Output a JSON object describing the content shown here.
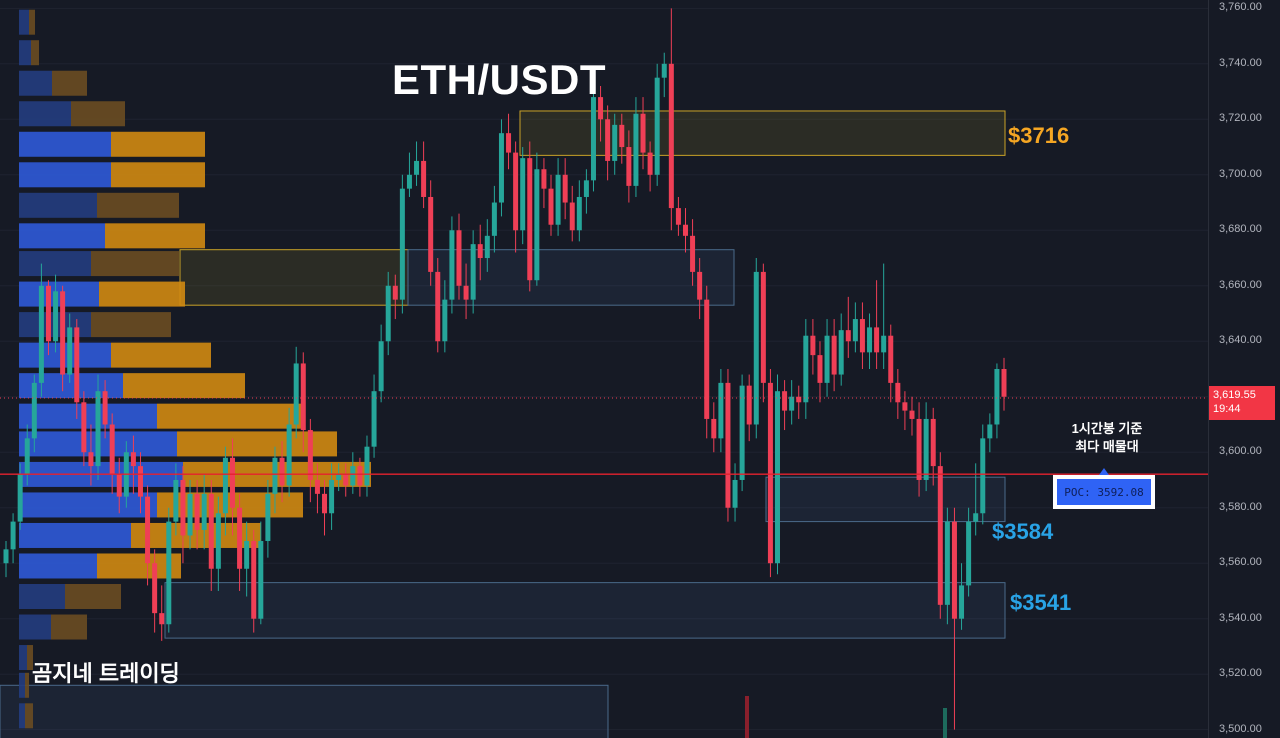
{
  "chart_data": {
    "type": "candlestick",
    "title": "ETH/USDT",
    "timeframe_note": [
      "1시간봉 기준",
      "최다 매물대"
    ],
    "watermark": "곰지네 트레이딩",
    "y_axis": {
      "range": [
        3497,
        3763
      ],
      "ticks": [
        "3,760.00",
        "3,740.00",
        "3,720.00",
        "3,700.00",
        "3,680.00",
        "3,660.00",
        "3,640.00",
        "3,620.00",
        "3,600.00",
        "3,580.00",
        "3,560.00",
        "3,540.00",
        "3,520.00",
        "3,500.00"
      ],
      "tick_values": [
        3760,
        3740,
        3720,
        3700,
        3680,
        3660,
        3640,
        3620,
        3600,
        3580,
        3560,
        3540,
        3520,
        3500
      ]
    },
    "current_price": {
      "label": "3,619.55",
      "countdown": "19:44",
      "value": 3619.55
    },
    "poc": {
      "label": "POC: 3592.08",
      "value": 3592.08
    },
    "levels": [
      {
        "label": "$3716",
        "color": "#f5a623"
      },
      {
        "label": "$3584",
        "color": "#29a3e6"
      },
      {
        "label": "$3541",
        "color": "#29a3e6"
      }
    ],
    "zones": [
      {
        "name": "resistance-3716",
        "y_top": 3723,
        "y_bottom": 3707,
        "x_start": 520,
        "x_end": 1005,
        "style": "yellow"
      },
      {
        "name": "mid-zone-3660",
        "y_top": 3673,
        "y_bottom": 3653,
        "x_start": 180,
        "x_end": 408,
        "style": "yellow"
      },
      {
        "name": "mid-zone-3660-blue",
        "y_top": 3673,
        "y_bottom": 3653,
        "x_start": 408,
        "x_end": 734,
        "style": "blue"
      },
      {
        "name": "support-3584",
        "y_top": 3591,
        "y_bottom": 3575,
        "x_start": 766,
        "x_end": 1005,
        "style": "blue"
      },
      {
        "name": "support-3541",
        "y_top": 3553,
        "y_bottom": 3533,
        "x_start": 165,
        "x_end": 1005,
        "style": "blue"
      },
      {
        "name": "lower-zone",
        "y_top": 3516,
        "y_bottom": 3490,
        "x_start": 0,
        "x_end": 608,
        "style": "blue"
      }
    ],
    "volume_profile": [
      {
        "price": 3755,
        "buy": 10,
        "sell": 6
      },
      {
        "price": 3744,
        "buy": 12,
        "sell": 8
      },
      {
        "price": 3733,
        "buy": 33,
        "sell": 35
      },
      {
        "price": 3722,
        "buy": 52,
        "sell": 54
      },
      {
        "price": 3711,
        "buy": 92,
        "sell": 94
      },
      {
        "price": 3700,
        "buy": 92,
        "sell": 94
      },
      {
        "price": 3689,
        "buy": 78,
        "sell": 82
      },
      {
        "price": 3678,
        "buy": 86,
        "sell": 100
      },
      {
        "price": 3668,
        "buy": 72,
        "sell": 88
      },
      {
        "price": 3657,
        "buy": 80,
        "sell": 86
      },
      {
        "price": 3646,
        "buy": 72,
        "sell": 80
      },
      {
        "price": 3635,
        "buy": 92,
        "sell": 100
      },
      {
        "price": 3624,
        "buy": 104,
        "sell": 122
      },
      {
        "price": 3613,
        "buy": 138,
        "sell": 146
      },
      {
        "price": 3603,
        "buy": 158,
        "sell": 160
      },
      {
        "price": 3592,
        "buy": 164,
        "sell": 188
      },
      {
        "price": 3581,
        "buy": 138,
        "sell": 146
      },
      {
        "price": 3570,
        "buy": 112,
        "sell": 130
      },
      {
        "price": 3559,
        "buy": 78,
        "sell": 84
      },
      {
        "price": 3548,
        "buy": 46,
        "sell": 56
      },
      {
        "price": 3537,
        "buy": 32,
        "sell": 36
      },
      {
        "price": 3526,
        "buy": 8,
        "sell": 6
      },
      {
        "price": 3516,
        "buy": 6,
        "sell": 4
      },
      {
        "price": 3505,
        "buy": 6,
        "sell": 8
      }
    ],
    "candles": [
      [
        3560,
        3565,
        3555,
        3568
      ],
      [
        3565,
        3575,
        3560,
        3578
      ],
      [
        3575,
        3592,
        3572,
        3596
      ],
      [
        3592,
        3605,
        3588,
        3610
      ],
      [
        3605,
        3625,
        3600,
        3628
      ],
      [
        3625,
        3660,
        3620,
        3668
      ],
      [
        3660,
        3640,
        3635,
        3662
      ],
      [
        3640,
        3658,
        3636,
        3664
      ],
      [
        3658,
        3628,
        3622,
        3660
      ],
      [
        3628,
        3645,
        3625,
        3650
      ],
      [
        3645,
        3618,
        3612,
        3648
      ],
      [
        3618,
        3600,
        3595,
        3622
      ],
      [
        3600,
        3595,
        3588,
        3610
      ],
      [
        3595,
        3622,
        3590,
        3628
      ],
      [
        3622,
        3610,
        3605,
        3626
      ],
      [
        3610,
        3592,
        3585,
        3614
      ],
      [
        3592,
        3584,
        3578,
        3598
      ],
      [
        3584,
        3600,
        3580,
        3604
      ],
      [
        3600,
        3595,
        3585,
        3606
      ],
      [
        3595,
        3584,
        3578,
        3600
      ],
      [
        3584,
        3560,
        3552,
        3588
      ],
      [
        3560,
        3542,
        3535,
        3565
      ],
      [
        3542,
        3538,
        3532,
        3552
      ],
      [
        3538,
        3575,
        3535,
        3580
      ],
      [
        3575,
        3590,
        3570,
        3596
      ],
      [
        3590,
        3570,
        3560,
        3595
      ],
      [
        3570,
        3585,
        3565,
        3590
      ],
      [
        3585,
        3572,
        3565,
        3590
      ],
      [
        3572,
        3585,
        3565,
        3592
      ],
      [
        3585,
        3558,
        3550,
        3590
      ],
      [
        3558,
        3578,
        3550,
        3584
      ],
      [
        3578,
        3598,
        3570,
        3602
      ],
      [
        3598,
        3580,
        3570,
        3605
      ],
      [
        3580,
        3558,
        3550,
        3585
      ],
      [
        3558,
        3568,
        3548,
        3575
      ],
      [
        3568,
        3540,
        3535,
        3572
      ],
      [
        3540,
        3568,
        3538,
        3575
      ],
      [
        3568,
        3585,
        3562,
        3590
      ],
      [
        3585,
        3598,
        3578,
        3602
      ],
      [
        3598,
        3588,
        3582,
        3604
      ],
      [
        3588,
        3610,
        3584,
        3616
      ],
      [
        3610,
        3632,
        3605,
        3638
      ],
      [
        3632,
        3608,
        3600,
        3636
      ],
      [
        3608,
        3590,
        3582,
        3612
      ],
      [
        3590,
        3585,
        3578,
        3596
      ],
      [
        3585,
        3578,
        3570,
        3590
      ],
      [
        3578,
        3590,
        3572,
        3596
      ],
      [
        3590,
        3592,
        3586,
        3596
      ],
      [
        3592,
        3588,
        3584,
        3596
      ],
      [
        3588,
        3595,
        3585,
        3600
      ],
      [
        3595,
        3588,
        3584,
        3598
      ],
      [
        3588,
        3602,
        3584,
        3606
      ],
      [
        3602,
        3622,
        3598,
        3628
      ],
      [
        3622,
        3640,
        3618,
        3646
      ],
      [
        3640,
        3660,
        3635,
        3665
      ],
      [
        3660,
        3655,
        3648,
        3664
      ],
      [
        3655,
        3695,
        3650,
        3700
      ],
      [
        3695,
        3700,
        3692,
        3708
      ],
      [
        3700,
        3705,
        3696,
        3712
      ],
      [
        3705,
        3692,
        3688,
        3712
      ],
      [
        3692,
        3665,
        3660,
        3698
      ],
      [
        3665,
        3640,
        3636,
        3670
      ],
      [
        3640,
        3655,
        3636,
        3662
      ],
      [
        3655,
        3680,
        3650,
        3685
      ],
      [
        3680,
        3660,
        3655,
        3686
      ],
      [
        3660,
        3655,
        3648,
        3668
      ],
      [
        3655,
        3675,
        3650,
        3680
      ],
      [
        3675,
        3670,
        3662,
        3682
      ],
      [
        3670,
        3678,
        3665,
        3684
      ],
      [
        3678,
        3690,
        3672,
        3696
      ],
      [
        3690,
        3715,
        3685,
        3720
      ],
      [
        3715,
        3708,
        3702,
        3722
      ],
      [
        3708,
        3680,
        3672,
        3712
      ],
      [
        3680,
        3706,
        3675,
        3710
      ],
      [
        3706,
        3662,
        3658,
        3712
      ],
      [
        3662,
        3702,
        3660,
        3708
      ],
      [
        3702,
        3695,
        3688,
        3706
      ],
      [
        3695,
        3682,
        3678,
        3700
      ],
      [
        3682,
        3700,
        3678,
        3706
      ],
      [
        3700,
        3690,
        3684,
        3706
      ],
      [
        3690,
        3680,
        3676,
        3696
      ],
      [
        3680,
        3692,
        3676,
        3698
      ],
      [
        3692,
        3698,
        3686,
        3702
      ],
      [
        3698,
        3728,
        3694,
        3732
      ],
      [
        3728,
        3720,
        3712,
        3732
      ],
      [
        3720,
        3705,
        3698,
        3725
      ],
      [
        3705,
        3718,
        3700,
        3722
      ],
      [
        3718,
        3710,
        3704,
        3722
      ],
      [
        3710,
        3696,
        3690,
        3716
      ],
      [
        3696,
        3722,
        3692,
        3728
      ],
      [
        3722,
        3708,
        3702,
        3728
      ],
      [
        3708,
        3700,
        3694,
        3712
      ],
      [
        3700,
        3735,
        3696,
        3740
      ],
      [
        3735,
        3740,
        3728,
        3744
      ],
      [
        3740,
        3688,
        3680,
        3760
      ],
      [
        3688,
        3682,
        3678,
        3692
      ],
      [
        3682,
        3678,
        3672,
        3688
      ],
      [
        3678,
        3665,
        3660,
        3684
      ],
      [
        3665,
        3655,
        3648,
        3670
      ],
      [
        3655,
        3612,
        3605,
        3660
      ],
      [
        3612,
        3605,
        3600,
        3618
      ],
      [
        3605,
        3625,
        3600,
        3630
      ],
      [
        3625,
        3580,
        3575,
        3630
      ],
      [
        3580,
        3590,
        3575,
        3596
      ],
      [
        3590,
        3624,
        3586,
        3628
      ],
      [
        3624,
        3610,
        3604,
        3628
      ],
      [
        3610,
        3665,
        3605,
        3670
      ],
      [
        3665,
        3625,
        3618,
        3668
      ],
      [
        3625,
        3560,
        3555,
        3630
      ],
      [
        3560,
        3622,
        3556,
        3628
      ],
      [
        3622,
        3615,
        3608,
        3626
      ],
      [
        3615,
        3620,
        3610,
        3626
      ],
      [
        3620,
        3618,
        3612,
        3624
      ],
      [
        3618,
        3642,
        3612,
        3648
      ],
      [
        3642,
        3635,
        3628,
        3648
      ],
      [
        3635,
        3625,
        3618,
        3640
      ],
      [
        3625,
        3642,
        3620,
        3648
      ],
      [
        3642,
        3628,
        3622,
        3648
      ],
      [
        3628,
        3644,
        3624,
        3650
      ],
      [
        3644,
        3640,
        3634,
        3656
      ],
      [
        3640,
        3648,
        3636,
        3654
      ],
      [
        3648,
        3636,
        3630,
        3654
      ],
      [
        3636,
        3645,
        3630,
        3650
      ],
      [
        3645,
        3636,
        3630,
        3662
      ],
      [
        3636,
        3642,
        3630,
        3668
      ],
      [
        3642,
        3625,
        3618,
        3646
      ],
      [
        3625,
        3618,
        3612,
        3630
      ],
      [
        3618,
        3615,
        3608,
        3622
      ],
      [
        3615,
        3612,
        3606,
        3620
      ],
      [
        3612,
        3590,
        3584,
        3618
      ],
      [
        3590,
        3612,
        3586,
        3618
      ],
      [
        3612,
        3595,
        3588,
        3616
      ],
      [
        3595,
        3545,
        3540,
        3600
      ],
      [
        3545,
        3575,
        3538,
        3580
      ],
      [
        3575,
        3540,
        3500,
        3580
      ],
      [
        3540,
        3552,
        3536,
        3560
      ],
      [
        3552,
        3575,
        3548,
        3580
      ],
      [
        3575,
        3578,
        3570,
        3596
      ],
      [
        3578,
        3605,
        3574,
        3610
      ],
      [
        3605,
        3610,
        3600,
        3614
      ],
      [
        3610,
        3630,
        3605,
        3632
      ],
      [
        3630,
        3620,
        3615,
        3634
      ]
    ]
  }
}
